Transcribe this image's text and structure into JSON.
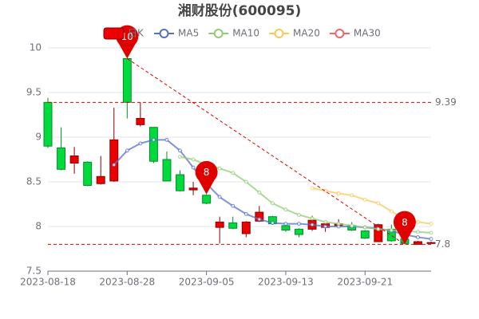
{
  "chart_data": {
    "type": "candlestick",
    "title": "湘财股份(600095)",
    "categories": [
      "2023-08-18",
      null,
      null,
      null,
      null,
      null,
      "2023-08-28",
      null,
      null,
      null,
      null,
      null,
      "2023-09-05",
      null,
      null,
      null,
      null,
      null,
      "2023-09-13",
      null,
      null,
      null,
      null,
      null,
      "2023-09-21",
      null,
      null,
      null,
      null,
      null
    ],
    "candles": {
      "name": "日K",
      "up_color": "#ec0000",
      "up_border": "#8a0000",
      "down_color": "#00da3c",
      "down_border": "#008f28",
      "open": [
        9.39,
        8.88,
        8.71,
        8.72,
        8.48,
        8.51,
        9.88,
        9.14,
        9.11,
        8.75,
        8.58,
        8.41,
        8.35,
        7.99,
        8.04,
        7.92,
        8.06,
        8.11,
        8.01,
        7.97,
        7.97,
        7.99,
        8.01,
        8.01,
        7.95,
        7.83,
        7.97,
        7.86,
        7.8,
        7.81
      ],
      "close": [
        8.9,
        8.64,
        8.79,
        8.46,
        8.56,
        8.97,
        9.39,
        9.21,
        8.73,
        8.51,
        8.4,
        8.43,
        8.26,
        8.05,
        7.98,
        8.05,
        8.16,
        8.03,
        7.96,
        7.91,
        8.07,
        8.03,
        8.03,
        7.96,
        7.87,
        8.02,
        7.84,
        7.81,
        7.83,
        7.82
      ],
      "high": [
        9.44,
        9.11,
        8.89,
        8.73,
        8.79,
        9.33,
        9.88,
        9.39,
        9.11,
        8.84,
        8.63,
        8.5,
        8.36,
        8.11,
        8.11,
        8.06,
        8.23,
        8.12,
        8.02,
        7.98,
        8.12,
        8.05,
        8.08,
        8.05,
        7.96,
        8.03,
        8.02,
        7.87,
        7.84,
        7.83
      ],
      "low": [
        8.88,
        8.63,
        8.59,
        8.45,
        8.47,
        8.5,
        9.21,
        9.12,
        8.71,
        8.51,
        8.39,
        8.35,
        8.25,
        7.81,
        7.97,
        7.88,
        8.05,
        8.02,
        7.94,
        7.88,
        7.95,
        7.94,
        7.99,
        7.95,
        7.86,
        7.83,
        7.83,
        7.8,
        7.81,
        7.81
      ]
    },
    "series": [
      {
        "name": "MA5",
        "color": "#5470c6",
        "values": [
          null,
          null,
          null,
          null,
          null,
          8.69,
          8.85,
          8.93,
          8.97,
          8.97,
          8.85,
          8.66,
          8.48,
          8.33,
          8.23,
          8.14,
          8.08,
          8.04,
          8.03,
          8.03,
          8.02,
          8.0,
          8.0,
          8.0,
          7.99,
          7.98,
          7.95,
          7.91,
          7.88,
          7.86
        ]
      },
      {
        "name": "MA10",
        "color": "#91cc75",
        "values": [
          null,
          null,
          null,
          null,
          null,
          null,
          null,
          null,
          null,
          null,
          8.78,
          8.75,
          8.69,
          8.65,
          8.6,
          8.5,
          8.38,
          8.26,
          8.19,
          8.13,
          8.09,
          8.05,
          8.03,
          8.01,
          7.99,
          7.97,
          7.96,
          7.95,
          7.94,
          7.93
        ]
      },
      {
        "name": "MA20",
        "color": "#fac858",
        "values": [
          null,
          null,
          null,
          null,
          null,
          null,
          null,
          null,
          null,
          null,
          null,
          null,
          null,
          null,
          null,
          null,
          null,
          null,
          null,
          null,
          8.43,
          8.4,
          8.37,
          8.35,
          8.3,
          8.26,
          8.17,
          8.08,
          8.05,
          8.03
        ]
      },
      {
        "name": "MA30",
        "color": "#ee6666",
        "values": [
          null,
          null,
          null,
          null,
          null,
          null,
          null,
          null,
          null,
          null,
          null,
          null,
          null,
          null,
          null,
          null,
          null,
          null,
          null,
          null,
          null,
          null,
          null,
          null,
          null,
          null,
          null,
          null,
          null,
          null
        ]
      }
    ],
    "mark_points": [
      {
        "field": "high",
        "value": 9.88,
        "label": "10"
      },
      {
        "field": "high",
        "value": 8.36,
        "label": "8"
      },
      {
        "field": "low",
        "value": 7.8,
        "label": "8"
      }
    ],
    "mark_lines": [
      {
        "value": 9.39
      },
      {
        "value": 7.8
      }
    ],
    "trend_line": true,
    "mark_color": "#e00000",
    "ylim": [
      7.5,
      10
    ],
    "yticks": [
      7.5,
      8,
      8.5,
      9,
      9.5,
      10
    ],
    "grid": true
  }
}
